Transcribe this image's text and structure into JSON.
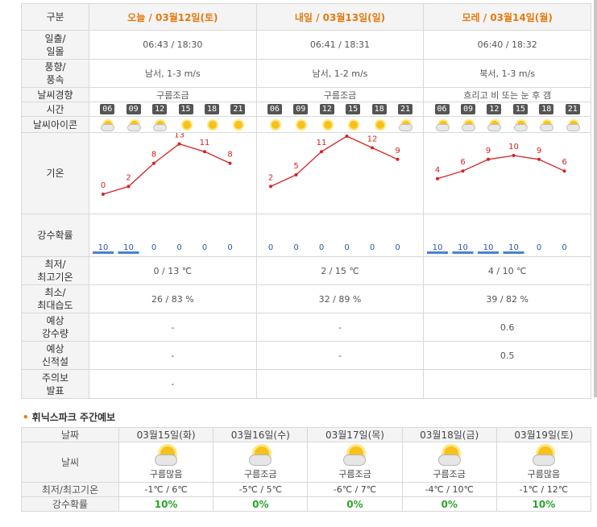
{
  "labels": {
    "gubun": "구분",
    "sunrise": [
      "일출/",
      "일몰"
    ],
    "wind": [
      "풍향/",
      "풍속"
    ],
    "tendency": "날씨경향",
    "time": "시간",
    "icon": "날씨아이콘",
    "temp": "기온",
    "precip": "강수확률",
    "minmax": [
      "최저/",
      "최고기온"
    ],
    "humid": [
      "최소/",
      "최대습도"
    ],
    "rain": [
      "예상",
      "강수량"
    ],
    "snow": [
      "예상",
      "신적설"
    ],
    "warn": [
      "주의보",
      "발표"
    ]
  },
  "hours": [
    "06",
    "09",
    "12",
    "15",
    "18",
    "21"
  ],
  "days": [
    {
      "header": "오늘 / 03월12일(토)",
      "sun": "06:43 / 18:30",
      "wind": "남서, 1-3 m/s",
      "tendency": "구름조금",
      "icons": [
        "partly-cloudy-icon",
        "partly-cloudy-icon",
        "partly-cloudy-icon",
        "sunny-icon",
        "sunny-icon",
        "sunny-icon"
      ],
      "temps": [
        0,
        2,
        8,
        13,
        11,
        8
      ],
      "precip": [
        10,
        10,
        0,
        0,
        0,
        0
      ],
      "minmax": "0 / 13 ℃",
      "humid": "26 / 83 %",
      "rain": "-",
      "snow": "-",
      "warn": "-"
    },
    {
      "header": "내일 / 03월13일(일)",
      "sun": "06:41 / 18:31",
      "wind": "남서, 1-2 m/s",
      "tendency": "구름조금",
      "icons": [
        "sunny-icon",
        "sunny-icon",
        "sunny-icon",
        "sunny-icon",
        "sunny-icon",
        "partly-cloudy-icon"
      ],
      "temps": [
        2,
        5,
        11,
        15,
        12,
        9
      ],
      "precip": [
        0,
        0,
        0,
        0,
        0,
        0
      ],
      "minmax": "2 / 15 ℃",
      "humid": "32 / 89 %",
      "rain": "-",
      "snow": "-",
      "warn": ""
    },
    {
      "header": "모레 / 03월14일(월)",
      "sun": "06:40 / 18:32",
      "wind": "북서, 1-3 m/s",
      "tendency": "흐리고 비 또는 눈 후 갬",
      "icons": [
        "partly-cloudy-icon",
        "partly-cloudy-icon",
        "partly-cloudy-icon",
        "partly-cloudy-icon",
        "partly-cloudy-icon",
        "partly-cloudy-icon"
      ],
      "temps": [
        4,
        6,
        9,
        10,
        9,
        6
      ],
      "precip": [
        10,
        10,
        10,
        10,
        0,
        0
      ],
      "minmax": "4 / 10 ℃",
      "humid": "39 / 82 %",
      "rain": "0.6",
      "snow": "0.5",
      "warn": ""
    }
  ],
  "weekly": {
    "title": "휘닉스파크 주간예보",
    "labels": {
      "date": "날짜",
      "weather": "날씨",
      "temp": "최저/최고기온",
      "precip": "강수확률"
    },
    "days": [
      {
        "date": "03월15일(화)",
        "desc": "구름많음",
        "temp": "-1℃ / 6℃",
        "precip": "10%"
      },
      {
        "date": "03월16일(수)",
        "desc": "구름조금",
        "temp": "-5℃ / 5℃",
        "precip": "0%"
      },
      {
        "date": "03월17일(목)",
        "desc": "구름조금",
        "temp": "-6℃ / 7℃",
        "precip": "0%"
      },
      {
        "date": "03월18일(금)",
        "desc": "구름조금",
        "temp": "-4℃ / 10℃",
        "precip": "0%"
      },
      {
        "date": "03월19일(토)",
        "desc": "구름많음",
        "temp": "-1℃ / 12℃",
        "precip": "10%"
      }
    ]
  },
  "colors": {
    "accent": "#e47a10",
    "line": "#d62222",
    "bar": "#4a7fd6",
    "precip_pct": "#2ba32b"
  },
  "chart_data": [
    {
      "type": "line",
      "x": [
        "06",
        "09",
        "12",
        "15",
        "18",
        "21"
      ],
      "series": [
        {
          "values": [
            0,
            2,
            8,
            13,
            11,
            8
          ]
        }
      ]
    },
    {
      "type": "line",
      "x": [
        "06",
        "09",
        "12",
        "15",
        "18",
        "21"
      ],
      "series": [
        {
          "values": [
            2,
            5,
            11,
            15,
            12,
            9
          ]
        }
      ]
    },
    {
      "type": "line",
      "x": [
        "06",
        "09",
        "12",
        "15",
        "18",
        "21"
      ],
      "series": [
        {
          "values": [
            4,
            6,
            9,
            10,
            9,
            6
          ]
        }
      ]
    }
  ]
}
